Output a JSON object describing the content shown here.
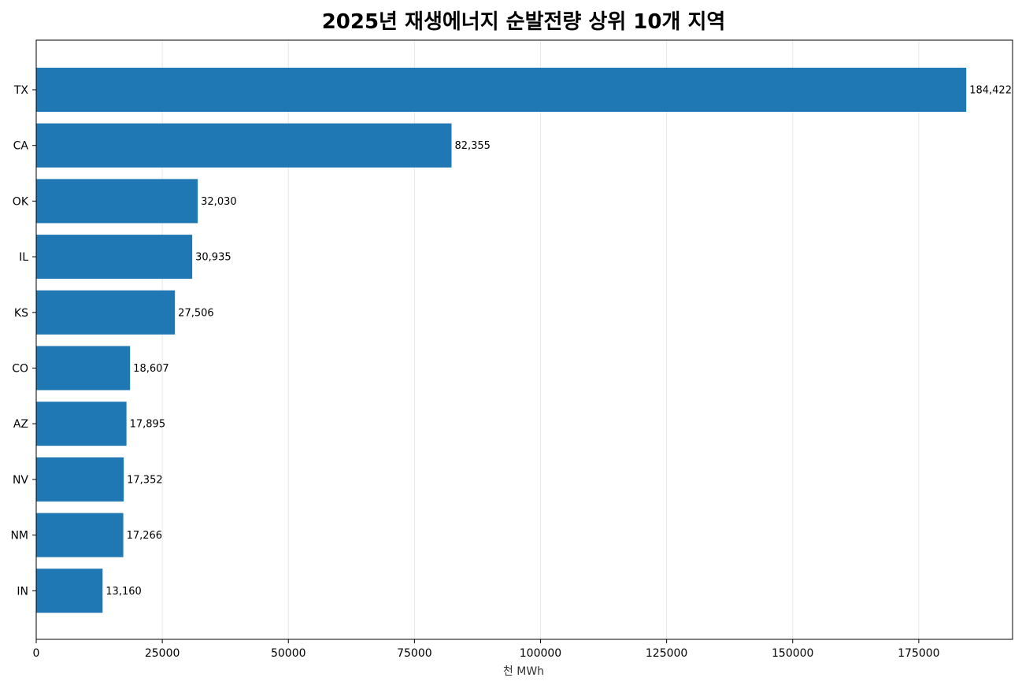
{
  "chart_data": {
    "type": "bar",
    "orientation": "horizontal",
    "title": "2025년 재생에너지 순발전량 상위 10개 지역",
    "xlabel": "천 MWh",
    "ylabel": "",
    "categories": [
      "TX",
      "CA",
      "OK",
      "IL",
      "KS",
      "CO",
      "AZ",
      "NV",
      "NM",
      "IN"
    ],
    "values": [
      184422,
      82355,
      32030,
      30935,
      27506,
      18607,
      17895,
      17352,
      17266,
      13160
    ],
    "data_labels": [
      "184,422",
      "82,355",
      "32,030",
      "30,935",
      "27,506",
      "18,607",
      "17,895",
      "17,352",
      "17,266",
      "13,160"
    ],
    "xlim": [
      0,
      193600
    ],
    "xticks": [
      0,
      25000,
      50000,
      75000,
      100000,
      125000,
      150000,
      175000
    ],
    "xtick_labels": [
      "0",
      "25000",
      "50000",
      "75000",
      "100000",
      "125000",
      "150000",
      "175000"
    ],
    "grid": "x",
    "bar_color": "#1f77b4",
    "grid_color": "#e6e6e6"
  }
}
